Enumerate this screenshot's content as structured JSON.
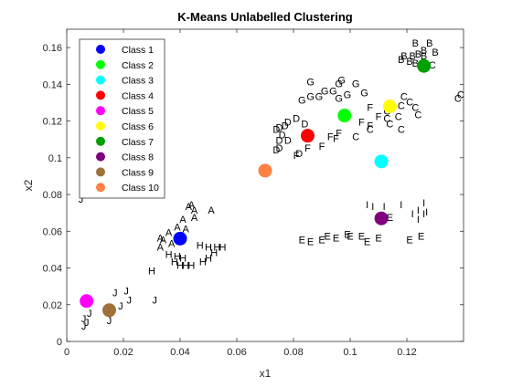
{
  "chart_data": {
    "type": "scatter",
    "title": "K-Means Unlabelled Clustering",
    "xlabel": "x1",
    "ylabel": "x2",
    "xlim": [
      0,
      0.14
    ],
    "ylim": [
      0,
      0.17
    ],
    "xticks": [
      0,
      0.02,
      0.04,
      0.06,
      0.08,
      0.1,
      0.12
    ],
    "xtick_labels": [
      "0",
      "0.02",
      "0.04",
      "0.06",
      "0.08",
      "0.1",
      "0.12"
    ],
    "yticks": [
      0,
      0.02,
      0.04,
      0.06,
      0.08,
      0.1,
      0.12,
      0.14,
      0.16
    ],
    "ytick_labels": [
      "0",
      "0.02",
      "0.04",
      "0.06",
      "0.08",
      "0.1",
      "0.12",
      "0.14",
      "0.16"
    ],
    "grid": false,
    "legend_position": "top-left",
    "centroids": [
      {
        "name": "Class 1",
        "color": "#0000ff",
        "x": 0.04,
        "y": 0.056
      },
      {
        "name": "Class 2",
        "color": "#00ff00",
        "x": 0.098,
        "y": 0.123
      },
      {
        "name": "Class 3",
        "color": "#00ffff",
        "x": 0.111,
        "y": 0.098
      },
      {
        "name": "Class 4",
        "color": "#ff0000",
        "x": 0.085,
        "y": 0.112
      },
      {
        "name": "Class 5",
        "color": "#ff00ff",
        "x": 0.007,
        "y": 0.022
      },
      {
        "name": "Class 6",
        "color": "#ffff00",
        "x": 0.114,
        "y": 0.128
      },
      {
        "name": "Class 7",
        "color": "#00a000",
        "x": 0.126,
        "y": 0.15
      },
      {
        "name": "Class 8",
        "color": "#800080",
        "x": 0.111,
        "y": 0.067
      },
      {
        "name": "Class 9",
        "color": "#a0703a",
        "x": 0.015,
        "y": 0.017
      },
      {
        "name": "Class 10",
        "color": "#ff8040",
        "x": 0.07,
        "y": 0.093
      }
    ],
    "points": [
      {
        "label": "A",
        "x": 0.043,
        "y": 0.073
      },
      {
        "label": "A",
        "x": 0.044,
        "y": 0.074
      },
      {
        "label": "A",
        "x": 0.045,
        "y": 0.071
      },
      {
        "label": "A",
        "x": 0.051,
        "y": 0.071
      },
      {
        "label": "A",
        "x": 0.041,
        "y": 0.066
      },
      {
        "label": "A",
        "x": 0.045,
        "y": 0.067
      },
      {
        "label": "A",
        "x": 0.039,
        "y": 0.062
      },
      {
        "label": "A",
        "x": 0.042,
        "y": 0.061
      },
      {
        "label": "A",
        "x": 0.036,
        "y": 0.059
      },
      {
        "label": "A",
        "x": 0.033,
        "y": 0.056
      },
      {
        "label": "A",
        "x": 0.034,
        "y": 0.055
      },
      {
        "label": "A",
        "x": 0.037,
        "y": 0.053
      },
      {
        "label": "A",
        "x": 0.033,
        "y": 0.051
      },
      {
        "label": "B",
        "x": 0.123,
        "y": 0.162
      },
      {
        "label": "B",
        "x": 0.128,
        "y": 0.162
      },
      {
        "label": "B",
        "x": 0.126,
        "y": 0.158
      },
      {
        "label": "B",
        "x": 0.13,
        "y": 0.157
      },
      {
        "label": "B",
        "x": 0.124,
        "y": 0.156
      },
      {
        "label": "B",
        "x": 0.122,
        "y": 0.155
      },
      {
        "label": "B",
        "x": 0.119,
        "y": 0.155
      },
      {
        "label": "B",
        "x": 0.126,
        "y": 0.155
      },
      {
        "label": "B",
        "x": 0.121,
        "y": 0.152
      },
      {
        "label": "B",
        "x": 0.123,
        "y": 0.151
      },
      {
        "label": "B",
        "x": 0.118,
        "y": 0.153
      },
      {
        "label": "C",
        "x": 0.129,
        "y": 0.15
      },
      {
        "label": "C",
        "x": 0.139,
        "y": 0.134
      },
      {
        "label": "C",
        "x": 0.138,
        "y": 0.132
      },
      {
        "label": "C",
        "x": 0.119,
        "y": 0.133
      },
      {
        "label": "C",
        "x": 0.121,
        "y": 0.13
      },
      {
        "label": "C",
        "x": 0.118,
        "y": 0.128
      },
      {
        "label": "C",
        "x": 0.123,
        "y": 0.127
      },
      {
        "label": "C",
        "x": 0.113,
        "y": 0.125
      },
      {
        "label": "C",
        "x": 0.124,
        "y": 0.123
      },
      {
        "label": "C",
        "x": 0.113,
        "y": 0.121
      },
      {
        "label": "C",
        "x": 0.117,
        "y": 0.122
      },
      {
        "label": "C",
        "x": 0.114,
        "y": 0.118
      },
      {
        "label": "C",
        "x": 0.107,
        "y": 0.115
      },
      {
        "label": "C",
        "x": 0.102,
        "y": 0.111
      },
      {
        "label": "C",
        "x": 0.118,
        "y": 0.115
      },
      {
        "label": "D",
        "x": 0.081,
        "y": 0.121
      },
      {
        "label": "D",
        "x": 0.078,
        "y": 0.119
      },
      {
        "label": "D",
        "x": 0.084,
        "y": 0.118
      },
      {
        "label": "D",
        "x": 0.077,
        "y": 0.117
      },
      {
        "label": "D",
        "x": 0.075,
        "y": 0.116
      },
      {
        "label": "D",
        "x": 0.074,
        "y": 0.115
      },
      {
        "label": "D",
        "x": 0.076,
        "y": 0.112
      },
      {
        "label": "D",
        "x": 0.078,
        "y": 0.109
      },
      {
        "label": "D",
        "x": 0.075,
        "y": 0.109
      },
      {
        "label": "D",
        "x": 0.075,
        "y": 0.105
      },
      {
        "label": "D",
        "x": 0.074,
        "y": 0.104
      },
      {
        "label": "D",
        "x": 0.082,
        "y": 0.102
      },
      {
        "label": "E",
        "x": 0.083,
        "y": 0.055
      },
      {
        "label": "E",
        "x": 0.086,
        "y": 0.054
      },
      {
        "label": "E",
        "x": 0.09,
        "y": 0.055
      },
      {
        "label": "E",
        "x": 0.092,
        "y": 0.057
      },
      {
        "label": "E",
        "x": 0.095,
        "y": 0.056
      },
      {
        "label": "E",
        "x": 0.099,
        "y": 0.058
      },
      {
        "label": "E",
        "x": 0.1,
        "y": 0.057
      },
      {
        "label": "E",
        "x": 0.104,
        "y": 0.057
      },
      {
        "label": "E",
        "x": 0.106,
        "y": 0.054
      },
      {
        "label": "E",
        "x": 0.11,
        "y": 0.056
      },
      {
        "label": "E",
        "x": 0.114,
        "y": 0.067
      },
      {
        "label": "E",
        "x": 0.121,
        "y": 0.055
      },
      {
        "label": "E",
        "x": 0.125,
        "y": 0.057
      },
      {
        "label": "F",
        "x": 0.107,
        "y": 0.127
      },
      {
        "label": "F",
        "x": 0.11,
        "y": 0.122
      },
      {
        "label": "F",
        "x": 0.104,
        "y": 0.119
      },
      {
        "label": "F",
        "x": 0.107,
        "y": 0.117
      },
      {
        "label": "F",
        "x": 0.096,
        "y": 0.113
      },
      {
        "label": "F",
        "x": 0.093,
        "y": 0.111
      },
      {
        "label": "F",
        "x": 0.095,
        "y": 0.11
      },
      {
        "label": "F",
        "x": 0.09,
        "y": 0.106
      },
      {
        "label": "F",
        "x": 0.085,
        "y": 0.105
      },
      {
        "label": "F",
        "x": 0.081,
        "y": 0.101
      },
      {
        "label": "G",
        "x": 0.086,
        "y": 0.141
      },
      {
        "label": "G",
        "x": 0.097,
        "y": 0.142
      },
      {
        "label": "G",
        "x": 0.096,
        "y": 0.14
      },
      {
        "label": "G",
        "x": 0.102,
        "y": 0.14
      },
      {
        "label": "G",
        "x": 0.091,
        "y": 0.136
      },
      {
        "label": "G",
        "x": 0.094,
        "y": 0.136
      },
      {
        "label": "G",
        "x": 0.099,
        "y": 0.134
      },
      {
        "label": "G",
        "x": 0.105,
        "y": 0.135
      },
      {
        "label": "G",
        "x": 0.089,
        "y": 0.133
      },
      {
        "label": "G",
        "x": 0.086,
        "y": 0.133
      },
      {
        "label": "G",
        "x": 0.083,
        "y": 0.131
      },
      {
        "label": "G",
        "x": 0.096,
        "y": 0.132
      },
      {
        "label": "H",
        "x": 0.047,
        "y": 0.052
      },
      {
        "label": "H",
        "x": 0.05,
        "y": 0.051
      },
      {
        "label": "H",
        "x": 0.053,
        "y": 0.051
      },
      {
        "label": "H",
        "x": 0.055,
        "y": 0.051
      },
      {
        "label": "H",
        "x": 0.052,
        "y": 0.048
      },
      {
        "label": "H",
        "x": 0.036,
        "y": 0.047
      },
      {
        "label": "H",
        "x": 0.039,
        "y": 0.046
      },
      {
        "label": "H",
        "x": 0.041,
        "y": 0.045
      },
      {
        "label": "H",
        "x": 0.05,
        "y": 0.045
      },
      {
        "label": "H",
        "x": 0.048,
        "y": 0.043
      },
      {
        "label": "H",
        "x": 0.038,
        "y": 0.043
      },
      {
        "label": "H",
        "x": 0.042,
        "y": 0.041
      },
      {
        "label": "H",
        "x": 0.04,
        "y": 0.041
      },
      {
        "label": "H",
        "x": 0.044,
        "y": 0.041
      },
      {
        "label": "H",
        "x": 0.03,
        "y": 0.038
      },
      {
        "label": "I",
        "x": 0.106,
        "y": 0.074
      },
      {
        "label": "I",
        "x": 0.108,
        "y": 0.073
      },
      {
        "label": "I",
        "x": 0.112,
        "y": 0.073
      },
      {
        "label": "I",
        "x": 0.118,
        "y": 0.074
      },
      {
        "label": "I",
        "x": 0.126,
        "y": 0.075
      },
      {
        "label": "I",
        "x": 0.124,
        "y": 0.071
      },
      {
        "label": "I",
        "x": 0.126,
        "y": 0.069
      },
      {
        "label": "I",
        "x": 0.127,
        "y": 0.07
      },
      {
        "label": "I",
        "x": 0.124,
        "y": 0.066
      },
      {
        "label": "I",
        "x": 0.122,
        "y": 0.069
      },
      {
        "label": "J",
        "x": 0.005,
        "y": 0.077
      },
      {
        "label": "J",
        "x": 0.017,
        "y": 0.026
      },
      {
        "label": "J",
        "x": 0.021,
        "y": 0.027
      },
      {
        "label": "J",
        "x": 0.022,
        "y": 0.022
      },
      {
        "label": "J",
        "x": 0.031,
        "y": 0.022
      },
      {
        "label": "J",
        "x": 0.019,
        "y": 0.019
      },
      {
        "label": "J",
        "x": 0.008,
        "y": 0.015
      },
      {
        "label": "J",
        "x": 0.006,
        "y": 0.012
      },
      {
        "label": "J",
        "x": 0.007,
        "y": 0.01
      },
      {
        "label": "J",
        "x": 0.006,
        "y": 0.008
      },
      {
        "label": "J",
        "x": 0.015,
        "y": 0.011
      }
    ]
  }
}
